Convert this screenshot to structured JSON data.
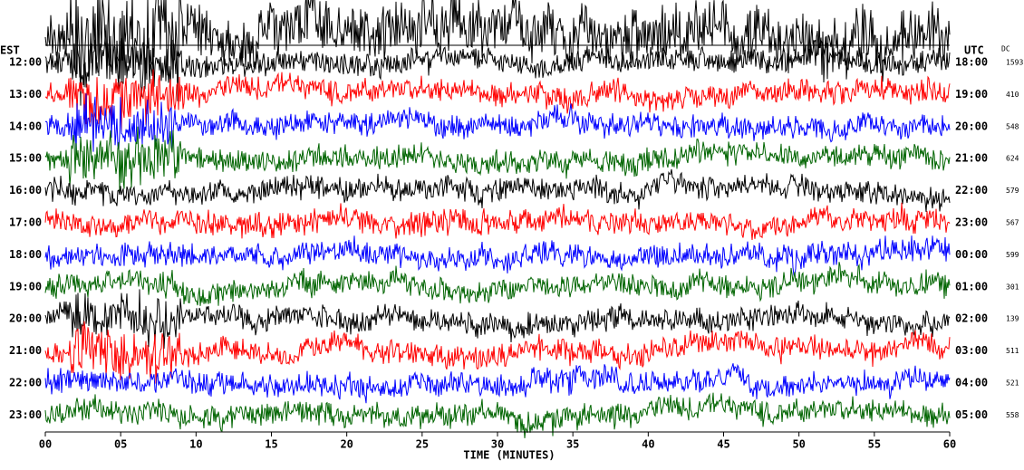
{
  "chart_data": {
    "type": "helicorder",
    "left_axis_label": "EST",
    "right_axis_label": "UTC",
    "dc_label": "DC",
    "xlabel": "TIME (MINUTES)",
    "xlim": [
      0,
      60
    ],
    "xticks": [
      {
        "value": 0,
        "label": "00"
      },
      {
        "value": 5,
        "label": "05"
      },
      10,
      15,
      20,
      25,
      30,
      35,
      40,
      45,
      50,
      55,
      60
    ],
    "rows": [
      {
        "est": "12:00",
        "utc": "18:00",
        "dc": 1593,
        "color": "#000000"
      },
      {
        "est": "13:00",
        "utc": "19:00",
        "dc": 410,
        "color": "#ff0000"
      },
      {
        "est": "14:00",
        "utc": "20:00",
        "dc": 548,
        "color": "#0000ff"
      },
      {
        "est": "15:00",
        "utc": "21:00",
        "dc": 624,
        "color": "#006400"
      },
      {
        "est": "16:00",
        "utc": "22:00",
        "dc": 579,
        "color": "#000000"
      },
      {
        "est": "17:00",
        "utc": "23:00",
        "dc": 567,
        "color": "#ff0000"
      },
      {
        "est": "18:00",
        "utc": "00:00",
        "dc": 599,
        "color": "#0000ff"
      },
      {
        "est": "19:00",
        "utc": "01:00",
        "dc": 301,
        "color": "#006400"
      },
      {
        "est": "20:00",
        "utc": "02:00",
        "dc": 139,
        "color": "#000000"
      },
      {
        "est": "21:00",
        "utc": "03:00",
        "dc": 511,
        "color": "#ff0000"
      },
      {
        "est": "22:00",
        "utc": "04:00",
        "dc": 521,
        "color": "#0000ff"
      },
      {
        "est": "23:00",
        "utc": "05:00",
        "dc": 558,
        "color": "#006400"
      }
    ]
  }
}
